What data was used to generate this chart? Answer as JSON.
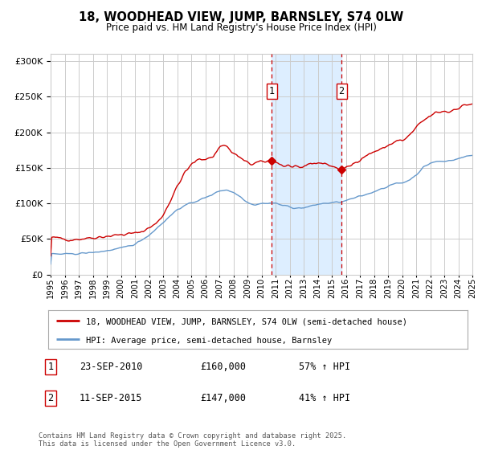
{
  "title": "18, WOODHEAD VIEW, JUMP, BARNSLEY, S74 0LW",
  "subtitle": "Price paid vs. HM Land Registry's House Price Index (HPI)",
  "legend_line1": "18, WOODHEAD VIEW, JUMP, BARNSLEY, S74 0LW (semi-detached house)",
  "legend_line2": "HPI: Average price, semi-detached house, Barnsley",
  "annotation1_date": "23-SEP-2010",
  "annotation1_price": "£160,000",
  "annotation1_hpi": "57% ↑ HPI",
  "annotation2_date": "11-SEP-2015",
  "annotation2_price": "£147,000",
  "annotation2_hpi": "41% ↑ HPI",
  "footer": "Contains HM Land Registry data © Crown copyright and database right 2025.\nThis data is licensed under the Open Government Licence v3.0.",
  "year_start": 1995,
  "year_end": 2025,
  "ylim_max": 310000,
  "red_color": "#cc0000",
  "blue_color": "#6699cc",
  "shade_color": "#ddeeff",
  "grid_color": "#cccccc",
  "event1_year": 2010.72,
  "event1_value": 160000,
  "event2_year": 2015.69,
  "event2_value": 147000,
  "background_color": "#ffffff"
}
